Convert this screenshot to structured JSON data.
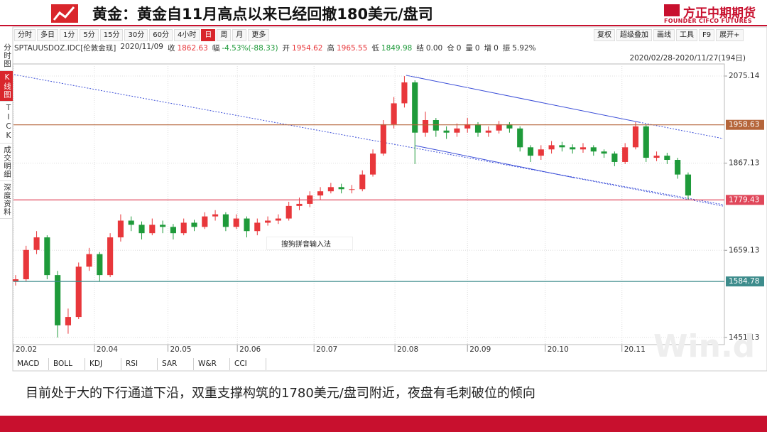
{
  "header": {
    "title": "黄金：黄金自11月高点以来已经回撤180美元/盘司",
    "brand": "方正中期期货",
    "brand_en": "FOUNDER CIFCO FUTURES"
  },
  "toolbar": {
    "periods": [
      "分时",
      "多日",
      "1分",
      "5分",
      "15分",
      "30分",
      "60分",
      "4小时",
      "日",
      "周",
      "月",
      "更多"
    ],
    "active": "日",
    "tools": [
      "复权",
      "超级叠加",
      "画线",
      "工具",
      "F9",
      "展开+"
    ]
  },
  "sidebar_tabs": [
    "分时图",
    "K线图",
    "TICK",
    "成交明细",
    "深度资料"
  ],
  "active_tab": "K线图",
  "quote": {
    "symbol": "SPTAUUSDOZ.IDC[伦敦金现]",
    "date": "2020/11/09",
    "fields": [
      {
        "label": "收",
        "value": "1862.63",
        "color": "#e8373b"
      },
      {
        "label": "幅",
        "value": "-4.53%(-88.33)",
        "color": "#1e9a3a"
      },
      {
        "label": "开",
        "value": "1954.62",
        "color": "#e8373b"
      },
      {
        "label": "高",
        "value": "1965.55",
        "color": "#e8373b"
      },
      {
        "label": "低",
        "value": "1849.98",
        "color": "#1e9a3a"
      },
      {
        "label": "结",
        "value": "0.00",
        "color": "#333333"
      },
      {
        "label": "仓",
        "value": "0",
        "color": "#333333"
      },
      {
        "label": "量",
        "value": "0",
        "color": "#333333"
      },
      {
        "label": "增",
        "value": "0",
        "color": "#333333"
      },
      {
        "label": "振",
        "value": "5.92%",
        "color": "#333333"
      }
    ]
  },
  "chart_data": {
    "type": "candlestick",
    "range_label": "2020/02/28-2020/11/27(194日)",
    "open": [
      1585,
      1590,
      1660,
      1690,
      1600,
      1480,
      1500,
      1620,
      1650,
      1600,
      1690,
      1730,
      1720,
      1700,
      1720,
      1715,
      1700,
      1725,
      1715,
      1740,
      1745,
      1715,
      1735,
      1705,
      1725,
      1730,
      1735,
      1765,
      1770,
      1790,
      1800,
      1810,
      1805,
      1805,
      1840,
      1890,
      1960,
      2010,
      2060,
      1940,
      1970,
      1945,
      1940,
      1950,
      1960,
      1940,
      1945,
      1960,
      1950,
      1905,
      1885,
      1900,
      1910,
      1905,
      1900,
      1905,
      1895,
      1890,
      1870,
      1905,
      1955,
      1880,
      1885,
      1875,
      1840
    ],
    "high": [
      1600,
      1670,
      1705,
      1695,
      1610,
      1520,
      1630,
      1665,
      1655,
      1700,
      1745,
      1740,
      1728,
      1735,
      1730,
      1722,
      1735,
      1732,
      1750,
      1755,
      1750,
      1745,
      1740,
      1735,
      1740,
      1745,
      1775,
      1785,
      1800,
      1810,
      1820,
      1818,
      1815,
      1850,
      1900,
      1970,
      2025,
      2075,
      2065,
      1990,
      1975,
      1955,
      1962,
      1975,
      1965,
      1955,
      1968,
      1965,
      1955,
      1910,
      1910,
      1920,
      1918,
      1912,
      1915,
      1910,
      1900,
      1895,
      1915,
      1965,
      1960,
      1895,
      1892,
      1880,
      1845
    ],
    "low": [
      1575,
      1585,
      1650,
      1590,
      1451,
      1460,
      1495,
      1610,
      1585,
      1595,
      1680,
      1705,
      1685,
      1695,
      1700,
      1685,
      1695,
      1705,
      1710,
      1730,
      1705,
      1710,
      1690,
      1695,
      1718,
      1722,
      1730,
      1755,
      1762,
      1780,
      1795,
      1795,
      1795,
      1800,
      1835,
      1885,
      1950,
      2000,
      1865,
      1930,
      1930,
      1925,
      1930,
      1940,
      1930,
      1930,
      1938,
      1940,
      1895,
      1870,
      1875,
      1890,
      1895,
      1890,
      1892,
      1885,
      1880,
      1860,
      1865,
      1900,
      1870,
      1872,
      1865,
      1830,
      1780
    ],
    "close": [
      1590,
      1660,
      1690,
      1600,
      1480,
      1500,
      1620,
      1650,
      1600,
      1690,
      1730,
      1720,
      1700,
      1720,
      1715,
      1700,
      1725,
      1715,
      1740,
      1745,
      1715,
      1735,
      1705,
      1725,
      1730,
      1735,
      1765,
      1770,
      1790,
      1800,
      1810,
      1805,
      1805,
      1840,
      1890,
      1960,
      2010,
      2060,
      1940,
      1970,
      1945,
      1940,
      1950,
      1960,
      1940,
      1945,
      1960,
      1950,
      1905,
      1885,
      1900,
      1910,
      1905,
      1900,
      1905,
      1895,
      1890,
      1870,
      1905,
      1955,
      1880,
      1885,
      1875,
      1840,
      1790
    ],
    "up_color": "#e8373b",
    "down_color": "#1e9a3a",
    "xlim": [
      -0.2,
      67.45
    ],
    "xticks": [
      {
        "value": -0.2,
        "label": "20.02"
      },
      {
        "value": 7.5,
        "label": "20.04"
      },
      {
        "value": 14.5,
        "label": "20.05"
      },
      {
        "value": 21.1,
        "label": "20.06"
      },
      {
        "value": 28.4,
        "label": "20.07"
      },
      {
        "value": 36.1,
        "label": "20.08"
      },
      {
        "value": 43.0,
        "label": "20.09"
      },
      {
        "value": 50.4,
        "label": "20.10"
      },
      {
        "value": 57.7,
        "label": "20.11"
      }
    ],
    "ylim": [
      1434,
      2104
    ],
    "yticks": [
      2075.14,
      1867.13,
      1659.13,
      1451.13
    ],
    "grid": true,
    "hlines": [
      {
        "value": 1958.63,
        "color": "#b5653a"
      },
      {
        "value": 1779.43,
        "color": "#e0475a"
      },
      {
        "value": 1584.78,
        "color": "#3d8c8c"
      }
    ]
  },
  "indicator_tabs": [
    "MACD",
    "BOLL",
    "KDJ",
    "RSI",
    "SAR",
    "W&R",
    "CCI"
  ],
  "ime_text": "搜狗拼音输入法",
  "watermark": "Win.d",
  "caption": "目前处于大的下行通道下沿，双重支撑构筑的1780美元/盘司附近，夜盘有毛刺破位的倾向"
}
